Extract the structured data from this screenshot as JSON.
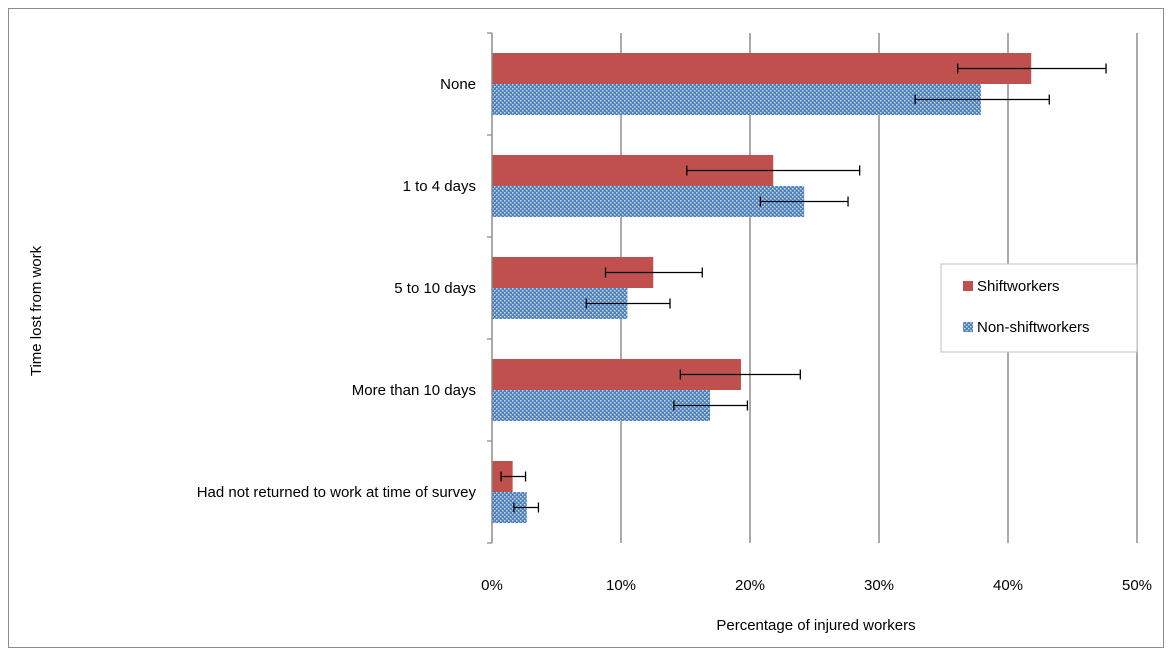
{
  "chart_data": {
    "type": "bar",
    "orientation": "horizontal",
    "categories": [
      "None",
      "1 to 4 days",
      "5 to 10 days",
      "More than 10 days",
      "Had not returned to work at time of survey"
    ],
    "series": [
      {
        "name": "Shiftworkers",
        "color": "#c0504d",
        "values": [
          41.8,
          21.8,
          12.5,
          19.3,
          1.6
        ],
        "error_low": [
          36.1,
          15.1,
          8.8,
          14.6,
          0.7
        ],
        "error_high": [
          47.6,
          28.5,
          16.3,
          23.9,
          2.6
        ]
      },
      {
        "name": "Non-shiftworkers",
        "color": "#4f81bd",
        "pattern": "dotted",
        "values": [
          37.9,
          24.2,
          10.5,
          16.9,
          2.7
        ],
        "error_low": [
          32.8,
          20.8,
          7.3,
          14.1,
          1.7
        ],
        "error_high": [
          43.2,
          27.6,
          13.8,
          19.8,
          3.6
        ]
      }
    ],
    "xlabel": "Percentage of injured workers",
    "ylabel": "Time lost from work",
    "xlim": [
      0,
      50
    ],
    "xticks": [
      "0%",
      "10%",
      "20%",
      "30%",
      "40%",
      "50%"
    ],
    "grid": true,
    "legend": "right"
  }
}
